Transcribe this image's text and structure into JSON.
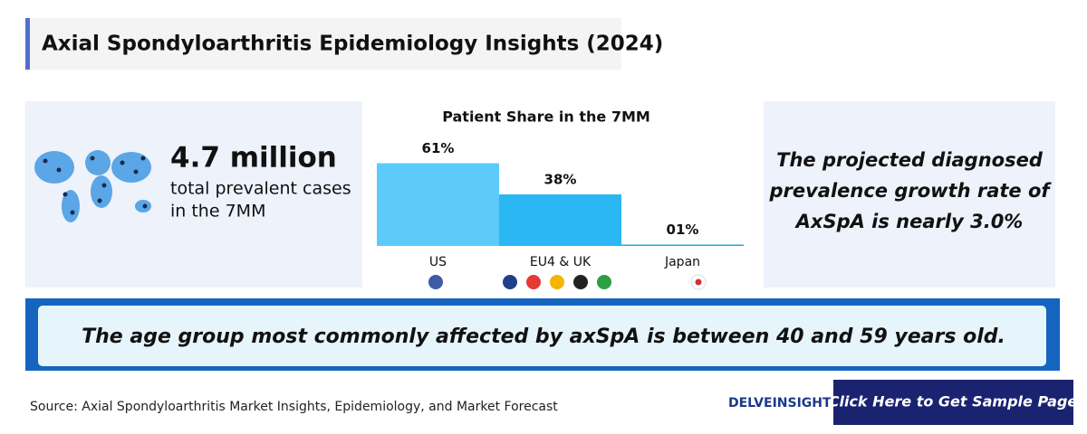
{
  "header": {
    "title": "Axial Spondyloarthritis Epidemiology Insights (2024)"
  },
  "stat": {
    "value": "4.7 million",
    "label_lines": [
      "total prevalent cases",
      "in the 7MM"
    ]
  },
  "chart_data": {
    "type": "bar",
    "title": "Patient Share in the 7MM",
    "categories": [
      "US",
      "EU4 & UK",
      "Japan"
    ],
    "values": [
      61,
      38,
      1
    ],
    "value_labels": [
      "61%",
      "38%",
      "01%"
    ],
    "colors": [
      "#5ccbfb",
      "#2bb6f4",
      "#1fa5e6"
    ]
  },
  "growth_note": {
    "lines": [
      "The projected diagnosed",
      "prevalence growth rate of",
      "AxSpA is nearly 3.0%"
    ]
  },
  "banner": {
    "text": "The age group most commonly affected by axSpA is between 40 and 59 years old."
  },
  "footer": {
    "source": "Source: Axial Spondyloarthritis Market Insights, Epidemiology, and Market Forecast",
    "logo": "DELVEINSIGHT",
    "button": "Click Here to Get Sample Page"
  }
}
